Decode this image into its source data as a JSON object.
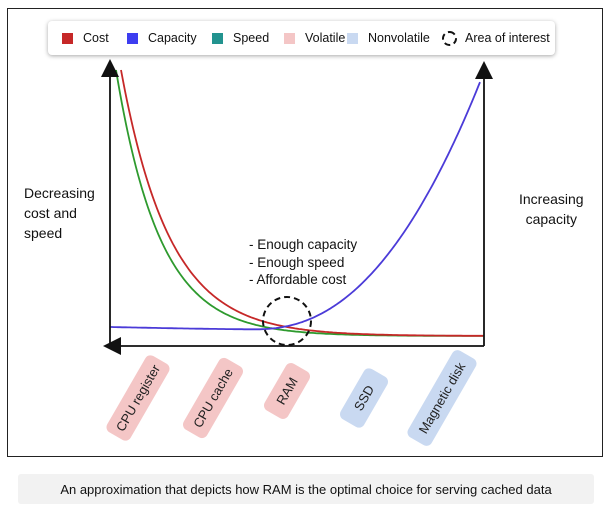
{
  "legend": [
    {
      "label": "Cost",
      "color": "#c62828",
      "shape": "square"
    },
    {
      "label": "Capacity",
      "color": "#3d3df0",
      "shape": "square"
    },
    {
      "label": "Speed",
      "color": "#22938f",
      "shape": "square"
    },
    {
      "label": "Volatile",
      "color": "#f4c6c6",
      "shape": "square"
    },
    {
      "label": "Nonvolatile",
      "color": "#c9d9f1",
      "shape": "square"
    },
    {
      "label": "Area of interest",
      "color": "#111111",
      "shape": "dashed-circle"
    }
  ],
  "left_label": [
    "Decreasing",
    "cost and",
    "speed"
  ],
  "right_label": [
    "Increasing",
    "capacity"
  ],
  "annotation": [
    "- Enough capacity",
    "- Enough speed",
    "- Affordable cost"
  ],
  "tiers": [
    {
      "label": "CPU register",
      "kind": "volatile"
    },
    {
      "label": "CPU cache",
      "kind": "volatile"
    },
    {
      "label": "RAM",
      "kind": "volatile"
    },
    {
      "label": "SSD",
      "kind": "nonvolatile"
    },
    {
      "label": "Magnetic disk",
      "kind": "nonvolatile"
    }
  ],
  "curves": {
    "cost_color": "#c62828",
    "speed_color": "#2e9a2e",
    "capacity_color": "#4b3bd8"
  },
  "caption": "An approximation that depicts how RAM is the optimal choice for serving cached data"
}
